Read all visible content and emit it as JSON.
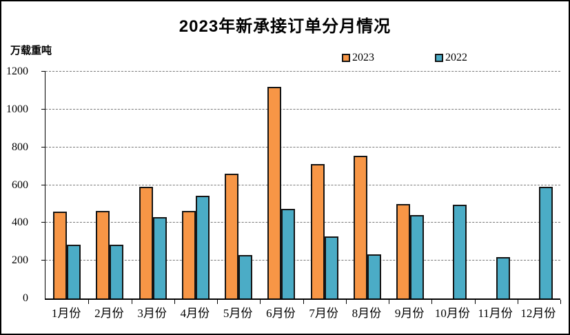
{
  "title": "2023年新承接订单分月情况",
  "unit_label": "万载重吨",
  "legend": {
    "items": [
      {
        "label": "2023",
        "color": "#F79646"
      },
      {
        "label": "2022",
        "color": "#4BACC6"
      }
    ]
  },
  "colors": {
    "series_2023": "#F79646",
    "series_2022": "#4BACC6",
    "bar_border": "#141414",
    "gridline": "#777777",
    "text": "#000000",
    "background": "#ffffff"
  },
  "chart_data": {
    "type": "bar",
    "title": "2023年新承接订单分月情况",
    "ylabel": "万载重吨",
    "xlabel": "",
    "categories": [
      "1月份",
      "2月份",
      "3月份",
      "4月份",
      "5月份",
      "6月份",
      "7月份",
      "8月份",
      "9月份",
      "10月份",
      "11月份",
      "12月份"
    ],
    "series": [
      {
        "name": "2023",
        "color": "#F79646",
        "values": [
          460,
          465,
          590,
          465,
          660,
          1120,
          710,
          755,
          500,
          null,
          null,
          null
        ]
      },
      {
        "name": "2022",
        "color": "#4BACC6",
        "values": [
          285,
          285,
          430,
          545,
          230,
          475,
          330,
          235,
          440,
          495,
          220,
          590
        ]
      }
    ],
    "ylim": [
      0,
      1200
    ],
    "ytick_step": 200,
    "yticks": [
      0,
      200,
      400,
      600,
      800,
      1000,
      1200
    ],
    "grid": true,
    "gridline_style": "dashed",
    "legend_position": "top"
  }
}
